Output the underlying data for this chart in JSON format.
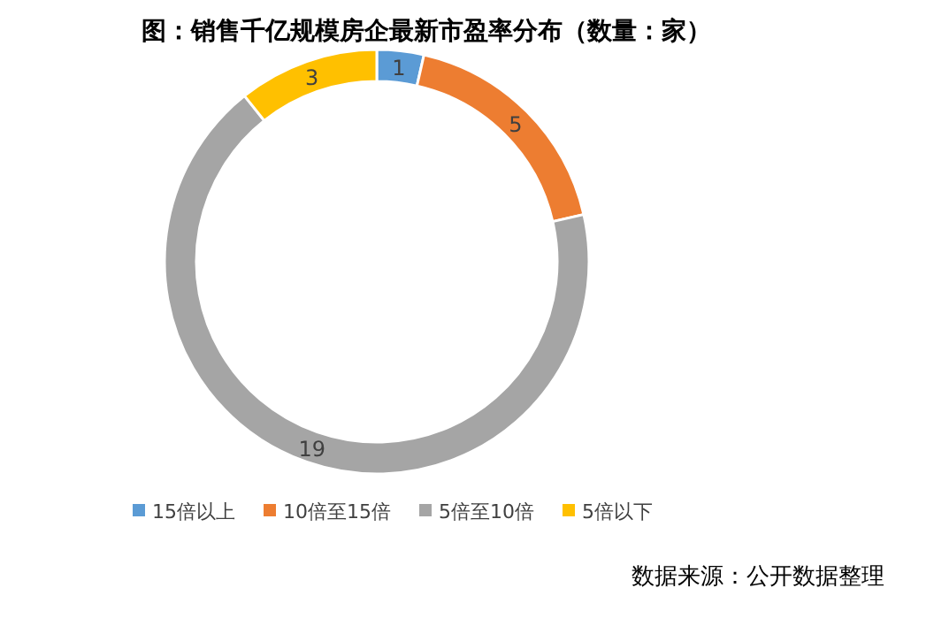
{
  "chart_data": {
    "type": "donut",
    "title": "图：销售千亿规模房企最新市盈率分布（数量：家）",
    "categories": [
      "15倍以上",
      "10倍至15倍",
      "5倍至10倍",
      "5倍以下"
    ],
    "values": [
      1,
      5,
      19,
      3
    ],
    "colors": [
      "#5b9bd5",
      "#ed7d31",
      "#a5a5a5",
      "#ffc000"
    ],
    "data_labels": true,
    "legend": "bottom",
    "annotations": [
      "数据来源：公开数据整理"
    ]
  }
}
